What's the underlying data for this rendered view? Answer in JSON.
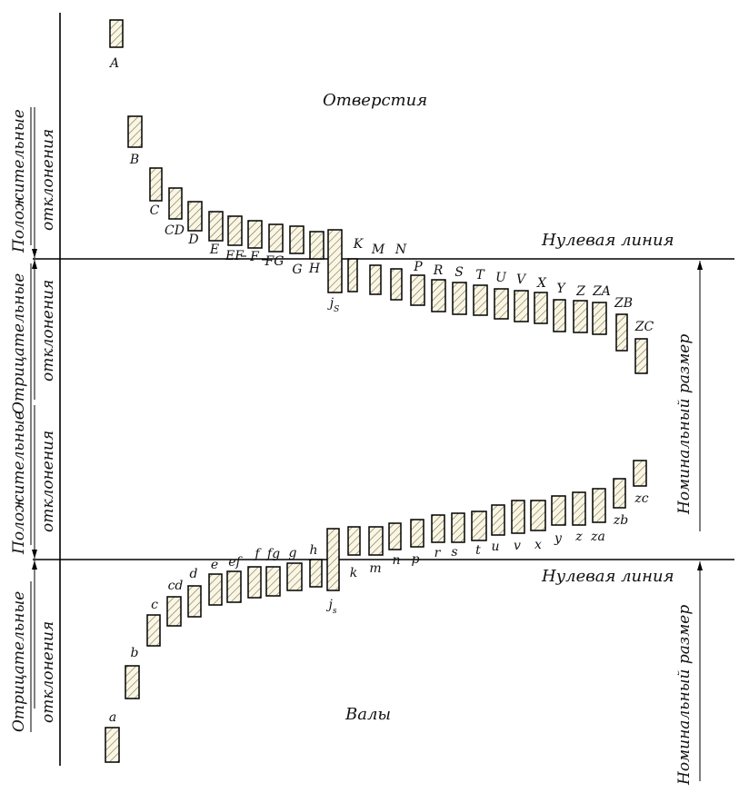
{
  "holes_title": "Отверстия",
  "shafts_title": "Валы",
  "zero_line": "Нулевая линия",
  "nominal": "Номинальный размер",
  "positive_dev": "Положительные",
  "negative_dev": "Отрицательные",
  "deviations": "отклонения",
  "holes": [
    {
      "l": "A"
    },
    {
      "l": "B"
    },
    {
      "l": "C"
    },
    {
      "l": "CD"
    },
    {
      "l": "D"
    },
    {
      "l": "E"
    },
    {
      "l": "EF"
    },
    {
      "l": "F"
    },
    {
      "l": "FG"
    },
    {
      "l": "G"
    },
    {
      "l": "H"
    },
    {
      "l": "j",
      "sub": "S"
    },
    {
      "l": "K"
    },
    {
      "l": "M"
    },
    {
      "l": "N"
    },
    {
      "l": "P"
    },
    {
      "l": "R"
    },
    {
      "l": "S"
    },
    {
      "l": "T"
    },
    {
      "l": "U"
    },
    {
      "l": "V"
    },
    {
      "l": "X"
    },
    {
      "l": "Y"
    },
    {
      "l": "Z"
    },
    {
      "l": "ZA"
    },
    {
      "l": "ZB"
    },
    {
      "l": "ZC"
    }
  ],
  "shafts": [
    {
      "l": "a"
    },
    {
      "l": "b"
    },
    {
      "l": "c"
    },
    {
      "l": "cd"
    },
    {
      "l": "d"
    },
    {
      "l": "e"
    },
    {
      "l": "ef"
    },
    {
      "l": "f"
    },
    {
      "l": "fg"
    },
    {
      "l": "g"
    },
    {
      "l": "h"
    },
    {
      "l": "j",
      "sub": "s"
    },
    {
      "l": "k"
    },
    {
      "l": "m"
    },
    {
      "l": "n"
    },
    {
      "l": "p"
    },
    {
      "l": "r"
    },
    {
      "l": "s"
    },
    {
      "l": "t"
    },
    {
      "l": "u"
    },
    {
      "l": "v"
    },
    {
      "l": "x"
    },
    {
      "l": "y"
    },
    {
      "l": "z"
    },
    {
      "l": "za"
    },
    {
      "l": "zb"
    },
    {
      "l": "zc"
    }
  ]
}
